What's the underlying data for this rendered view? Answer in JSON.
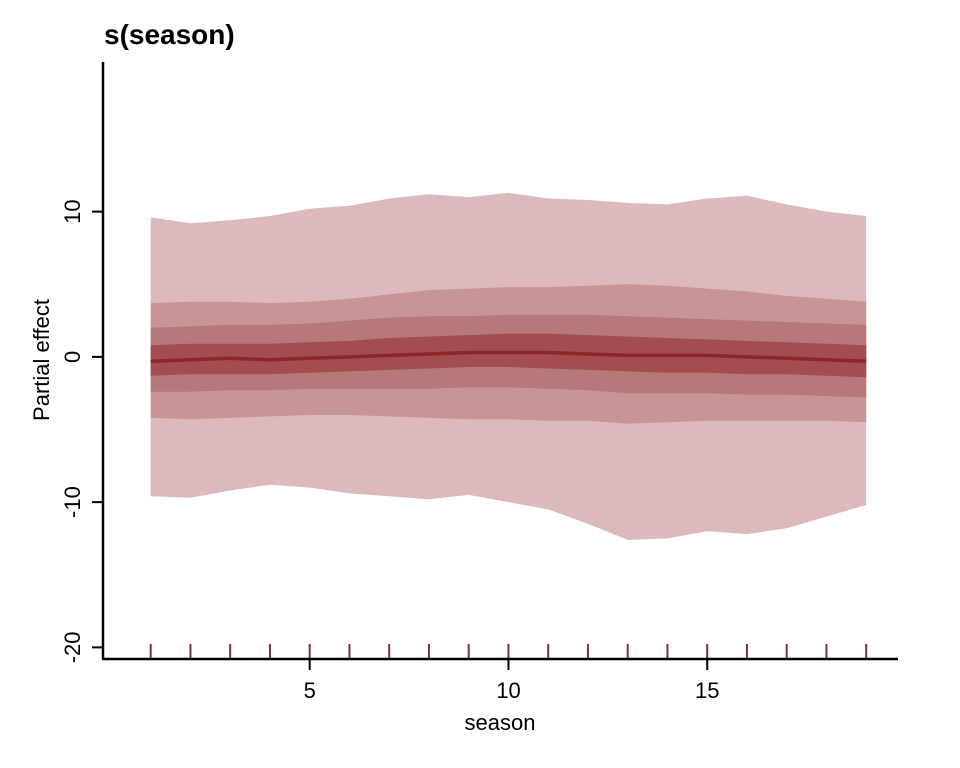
{
  "chart_data": {
    "type": "area",
    "title": "s(season)",
    "xlabel": "season",
    "ylabel": "Partial effect",
    "xlim": [
      -0.2,
      19.8
    ],
    "ylim": [
      -20.8,
      20.3
    ],
    "x_ticks": [
      5,
      10,
      15
    ],
    "y_ticks": [
      -20,
      -10,
      0,
      10
    ],
    "grid": false,
    "legend": "none",
    "colors": {
      "band_outer": "#dcb9ba",
      "band_2": "#c99495",
      "band_3": "#b6797a",
      "band_inner": "#a24d4f",
      "median": "#8c2628",
      "rug": "#7a3337"
    },
    "x": [
      1,
      2,
      3,
      4,
      5,
      6,
      7,
      8,
      9,
      10,
      11,
      12,
      13,
      14,
      15,
      16,
      17,
      18,
      19
    ],
    "median": [
      -0.3,
      -0.2,
      -0.1,
      -0.2,
      -0.1,
      0.0,
      0.1,
      0.2,
      0.3,
      0.3,
      0.3,
      0.2,
      0.1,
      0.1,
      0.1,
      0.0,
      -0.1,
      -0.2,
      -0.3
    ],
    "bands": [
      {
        "level": 1,
        "lower": [
          -9.6,
          -9.7,
          -9.2,
          -8.8,
          -9.0,
          -9.4,
          -9.6,
          -9.8,
          -9.5,
          -10.0,
          -10.5,
          -11.5,
          -12.6,
          -12.5,
          -12.0,
          -12.2,
          -11.8,
          -11.0,
          -10.2
        ],
        "upper": [
          9.6,
          9.2,
          9.4,
          9.7,
          10.2,
          10.4,
          10.9,
          11.2,
          11.0,
          11.3,
          10.9,
          10.8,
          10.6,
          10.5,
          10.9,
          11.1,
          10.5,
          10.0,
          9.7
        ]
      },
      {
        "level": 2,
        "lower": [
          -4.2,
          -4.3,
          -4.2,
          -4.1,
          -4.0,
          -4.0,
          -4.1,
          -4.2,
          -4.3,
          -4.3,
          -4.4,
          -4.4,
          -4.6,
          -4.5,
          -4.4,
          -4.4,
          -4.4,
          -4.4,
          -4.5
        ],
        "upper": [
          3.7,
          3.8,
          3.8,
          3.7,
          3.8,
          4.0,
          4.3,
          4.6,
          4.7,
          4.8,
          4.8,
          4.9,
          5.0,
          4.9,
          4.7,
          4.5,
          4.2,
          4.0,
          3.8
        ]
      },
      {
        "level": 3,
        "lower": [
          -2.4,
          -2.4,
          -2.3,
          -2.3,
          -2.2,
          -2.2,
          -2.2,
          -2.2,
          -2.1,
          -2.1,
          -2.2,
          -2.3,
          -2.5,
          -2.5,
          -2.5,
          -2.6,
          -2.6,
          -2.7,
          -2.8
        ],
        "upper": [
          2.0,
          2.1,
          2.2,
          2.2,
          2.3,
          2.5,
          2.7,
          2.8,
          2.8,
          2.9,
          2.9,
          2.9,
          2.8,
          2.7,
          2.6,
          2.5,
          2.4,
          2.3,
          2.2
        ]
      },
      {
        "level": 4,
        "lower": [
          -1.3,
          -1.2,
          -1.2,
          -1.2,
          -1.1,
          -1.0,
          -0.9,
          -0.8,
          -0.7,
          -0.7,
          -0.8,
          -0.9,
          -1.0,
          -1.1,
          -1.1,
          -1.2,
          -1.2,
          -1.3,
          -1.4
        ],
        "upper": [
          0.8,
          0.9,
          0.9,
          0.9,
          1.0,
          1.1,
          1.3,
          1.4,
          1.5,
          1.6,
          1.6,
          1.5,
          1.4,
          1.3,
          1.2,
          1.1,
          1.0,
          0.9,
          0.8
        ]
      }
    ],
    "rug_x": [
      1,
      2,
      3,
      4,
      5,
      6,
      7,
      8,
      9,
      10,
      11,
      12,
      13,
      14,
      15,
      16,
      17,
      18,
      19
    ]
  }
}
